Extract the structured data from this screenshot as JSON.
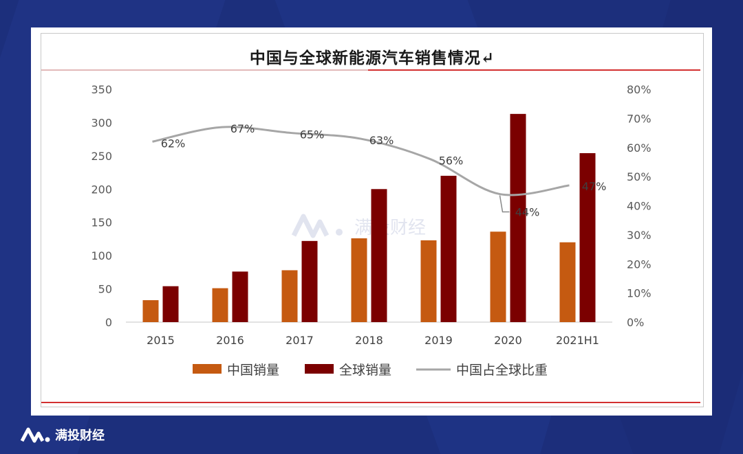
{
  "title": "中国与全球新能源汽车销售情况↵",
  "watermark": "满投财经",
  "brand": "满投财经",
  "colors": {
    "china": "#c55a11",
    "global": "#7b0000",
    "share": "#a6a6a6",
    "accent_line": "#d32f2f"
  },
  "chart_data": {
    "type": "bar",
    "categories": [
      "2015",
      "2016",
      "2017",
      "2018",
      "2019",
      "2020",
      "2021H1"
    ],
    "series": [
      {
        "name": "中国销量",
        "type": "bar",
        "axis": "left",
        "values": [
          33,
          51,
          78,
          126,
          123,
          136,
          120
        ]
      },
      {
        "name": "全球销量",
        "type": "bar",
        "axis": "left",
        "values": [
          54,
          76,
          122,
          200,
          220,
          313,
          254
        ]
      },
      {
        "name": "中国占全球比重",
        "type": "line",
        "axis": "right",
        "values": [
          0.62,
          0.67,
          0.65,
          0.63,
          0.56,
          0.44,
          0.47
        ],
        "labels": [
          "62%",
          "67%",
          "65%",
          "63%",
          "56%",
          "44%",
          "47%"
        ]
      }
    ],
    "ylim": [
      0,
      350
    ],
    "yticks": [
      "0",
      "50",
      "100",
      "150",
      "200",
      "250",
      "300",
      "350"
    ],
    "y2lim": [
      0,
      0.8
    ],
    "y2ticks": [
      "0%",
      "10%",
      "20%",
      "30%",
      "40%",
      "50%",
      "60%",
      "70%",
      "80%"
    ],
    "legend_position": "bottom",
    "grid": false
  }
}
